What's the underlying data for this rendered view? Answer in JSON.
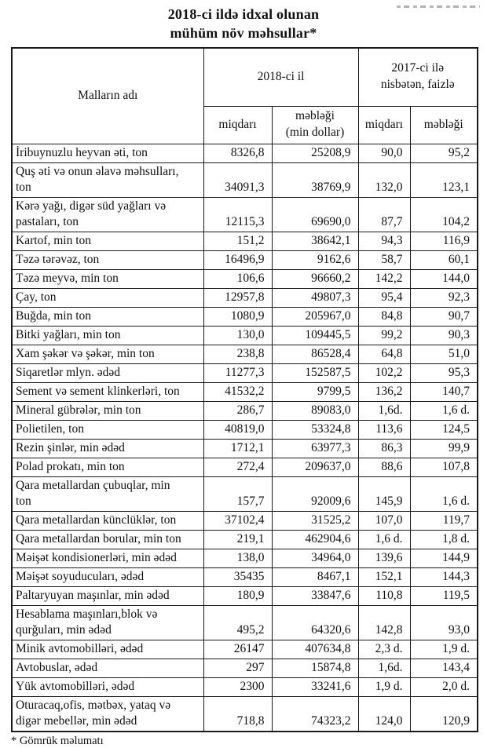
{
  "page": {
    "title_line1": "2018-ci ildə idxal olunan",
    "title_line2": "mühüm növ məhsullar*",
    "footnote": "* Gömrük məlumatı"
  },
  "colors": {
    "background": "#ffffff",
    "text": "#111111",
    "border": "#1a1a1a"
  },
  "table": {
    "header": {
      "goods": "Malların adı",
      "group_2018": "2018-ci il",
      "group_2017_ratio": "2017-ci ilə\nnisbətən, faizlə",
      "sub": [
        "miqdarı",
        "məbləği\n(min dollar)",
        "miqdarı",
        "məbləği"
      ]
    },
    "rows": [
      {
        "name": "İribuynuzlu heyvan əti, ton",
        "q2018": "8326,8",
        "a2018": "25208,9",
        "q_ratio": "90,0",
        "a_ratio": "95,2"
      },
      {
        "name": "Quş əti və onun əlavə məhsulları,\nton",
        "q2018": "34091,3",
        "a2018": "38769,9",
        "q_ratio": "132,0",
        "a_ratio": "123,1"
      },
      {
        "name": "Kərə yağı, digər süd yağları və\npastaları, ton",
        "q2018": "12115,3",
        "a2018": "69690,0",
        "q_ratio": "87,7",
        "a_ratio": "104,2"
      },
      {
        "name": "Kartof, min ton",
        "q2018": "151,2",
        "a2018": "38642,1",
        "q_ratio": "94,3",
        "a_ratio": "116,9"
      },
      {
        "name": "Təzə tərəvəz, ton",
        "q2018": "16496,9",
        "a2018": "9162,6",
        "q_ratio": "58,7",
        "a_ratio": "60,1"
      },
      {
        "name": "Təzə meyvə, min ton",
        "q2018": "106,6",
        "a2018": "96660,2",
        "q_ratio": "142,2",
        "a_ratio": "144,0"
      },
      {
        "name": "Çay, ton",
        "q2018": "12957,8",
        "a2018": "49807,3",
        "q_ratio": "95,4",
        "a_ratio": "92,3"
      },
      {
        "name": "Buğda, min ton",
        "q2018": "1080,9",
        "a2018": "205967,0",
        "q_ratio": "84,8",
        "a_ratio": "90,7"
      },
      {
        "name": "Bitki yağları, min ton",
        "q2018": "130,0",
        "a2018": "109445,5",
        "q_ratio": "99,2",
        "a_ratio": "90,3"
      },
      {
        "name": "Xam şəkər və şəkər, min ton",
        "q2018": "238,8",
        "a2018": "86528,4",
        "q_ratio": "64,8",
        "a_ratio": "51,0"
      },
      {
        "name": "Siqaretlər mlyn. ədəd",
        "q2018": "11277,3",
        "a2018": "152587,5",
        "q_ratio": "102,2",
        "a_ratio": "95,3"
      },
      {
        "name": "Sement və sement klinkerləri, ton",
        "q2018": "41532,2",
        "a2018": "9799,5",
        "q_ratio": "136,2",
        "a_ratio": "140,7"
      },
      {
        "name": "Mineral gübrələr, min ton",
        "q2018": "286,7",
        "a2018": "89083,0",
        "q_ratio": "1,6d.",
        "a_ratio": "1,6 d."
      },
      {
        "name": "Polietilen, ton",
        "q2018": "40819,0",
        "a2018": "53324,8",
        "q_ratio": "113,6",
        "a_ratio": "124,5"
      },
      {
        "name": "Rezin şinlər, min ədəd",
        "q2018": "1712,1",
        "a2018": "63977,3",
        "q_ratio": "86,3",
        "a_ratio": "99,9"
      },
      {
        "name": "Polad prokatı, min ton",
        "q2018": "272,4",
        "a2018": "209637,0",
        "q_ratio": "88,6",
        "a_ratio": "107,8"
      },
      {
        "name": "Qara metallardan çubuqlar, min\nton",
        "q2018": "157,7",
        "a2018": "92009,6",
        "q_ratio": "145,9",
        "a_ratio": "1,6 d."
      },
      {
        "name": "Qara metallardan künclüklər, ton",
        "q2018": "37102,4",
        "a2018": "31525,2",
        "q_ratio": "107,0",
        "a_ratio": "119,7"
      },
      {
        "name": "Qara metallardan borular, min ton",
        "q2018": "219,1",
        "a2018": "462904,6",
        "q_ratio": "1,6 d.",
        "a_ratio": "1,8 d."
      },
      {
        "name": "Məişət kondisionerləri, min ədəd",
        "q2018": "138,0",
        "a2018": "34964,0",
        "q_ratio": "139,6",
        "a_ratio": "144,9"
      },
      {
        "name": "Məişət soyuducuları, ədəd",
        "q2018": "35435",
        "a2018": "8467,1",
        "q_ratio": "152,1",
        "a_ratio": "144,3"
      },
      {
        "name": "Paltaryuyan maşınlar, min ədəd",
        "q2018": "180,9",
        "a2018": "33847,6",
        "q_ratio": "110,8",
        "a_ratio": "119,5"
      },
      {
        "name": "Hesablama maşınları,blok və\nqurğuları, min ədəd",
        "q2018": "495,2",
        "a2018": "64320,6",
        "q_ratio": "142,8",
        "a_ratio": "93,0"
      },
      {
        "name": "Minik avtomobilləri, ədəd",
        "q2018": "26147",
        "a2018": "407634,8",
        "q_ratio": "2,3 d.",
        "a_ratio": "1,9 d."
      },
      {
        "name": "Avtobuslar, ədəd",
        "q2018": "297",
        "a2018": "15874,8",
        "q_ratio": "1,6d.",
        "a_ratio": "143,4"
      },
      {
        "name": "Yük avtomobilləri, ədəd",
        "q2018": "2300",
        "a2018": "33241,6",
        "q_ratio": "1,9 d.",
        "a_ratio": "2,0 d."
      },
      {
        "name": "Oturacaq,ofis, mətbəx, yataq və\ndigər mebellər, min ədəd",
        "q2018": "718,8",
        "a2018": "74323,2",
        "q_ratio": "124,0",
        "a_ratio": "120,9"
      }
    ]
  }
}
